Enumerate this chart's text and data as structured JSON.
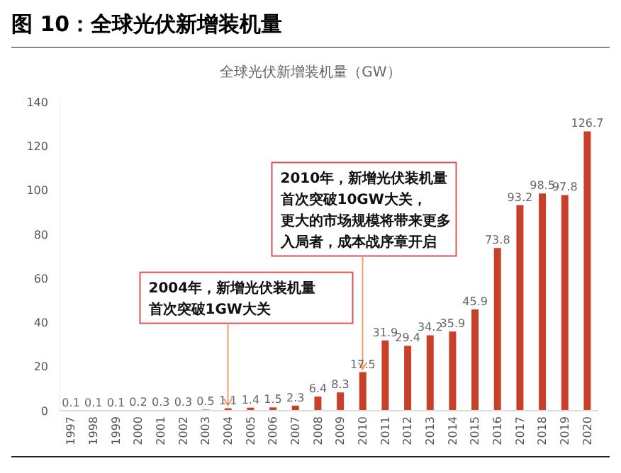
{
  "chart_data": {
    "type": "bar",
    "title": "图 10：全球光伏新增装机量",
    "subtitle": "全球光伏新增装机量（GW）",
    "categories": [
      "1997",
      "1998",
      "1999",
      "2000",
      "2001",
      "2002",
      "2003",
      "2004",
      "2005",
      "2006",
      "2007",
      "2008",
      "2009",
      "2010",
      "2011",
      "2012",
      "2013",
      "2014",
      "2015",
      "2016",
      "2017",
      "2018",
      "2019",
      "2020"
    ],
    "values": [
      0.1,
      0.1,
      0.1,
      0.2,
      0.3,
      0.3,
      0.5,
      1.1,
      1.4,
      1.5,
      2.3,
      6.4,
      8.3,
      17.5,
      31.9,
      29.4,
      34.2,
      35.9,
      45.9,
      73.8,
      93.2,
      98.5,
      97.8,
      126.7
    ],
    "color": "#c9402a",
    "ylim": [
      0,
      140
    ],
    "yticks": [
      0,
      20,
      40,
      60,
      80,
      100,
      120,
      140
    ],
    "grid": false,
    "legend": false,
    "data_labels": true,
    "annotations": [
      {
        "text": "2004年，新增光伏装机量首次突破1GW大关",
        "x": "2004",
        "y": 1.1
      },
      {
        "text": "2010年，新增光伏装机量首次突破10GW大关，更大的市场规模将带来更多入局者，成本战序章开启",
        "x": "2010",
        "y": 17.5
      }
    ]
  }
}
